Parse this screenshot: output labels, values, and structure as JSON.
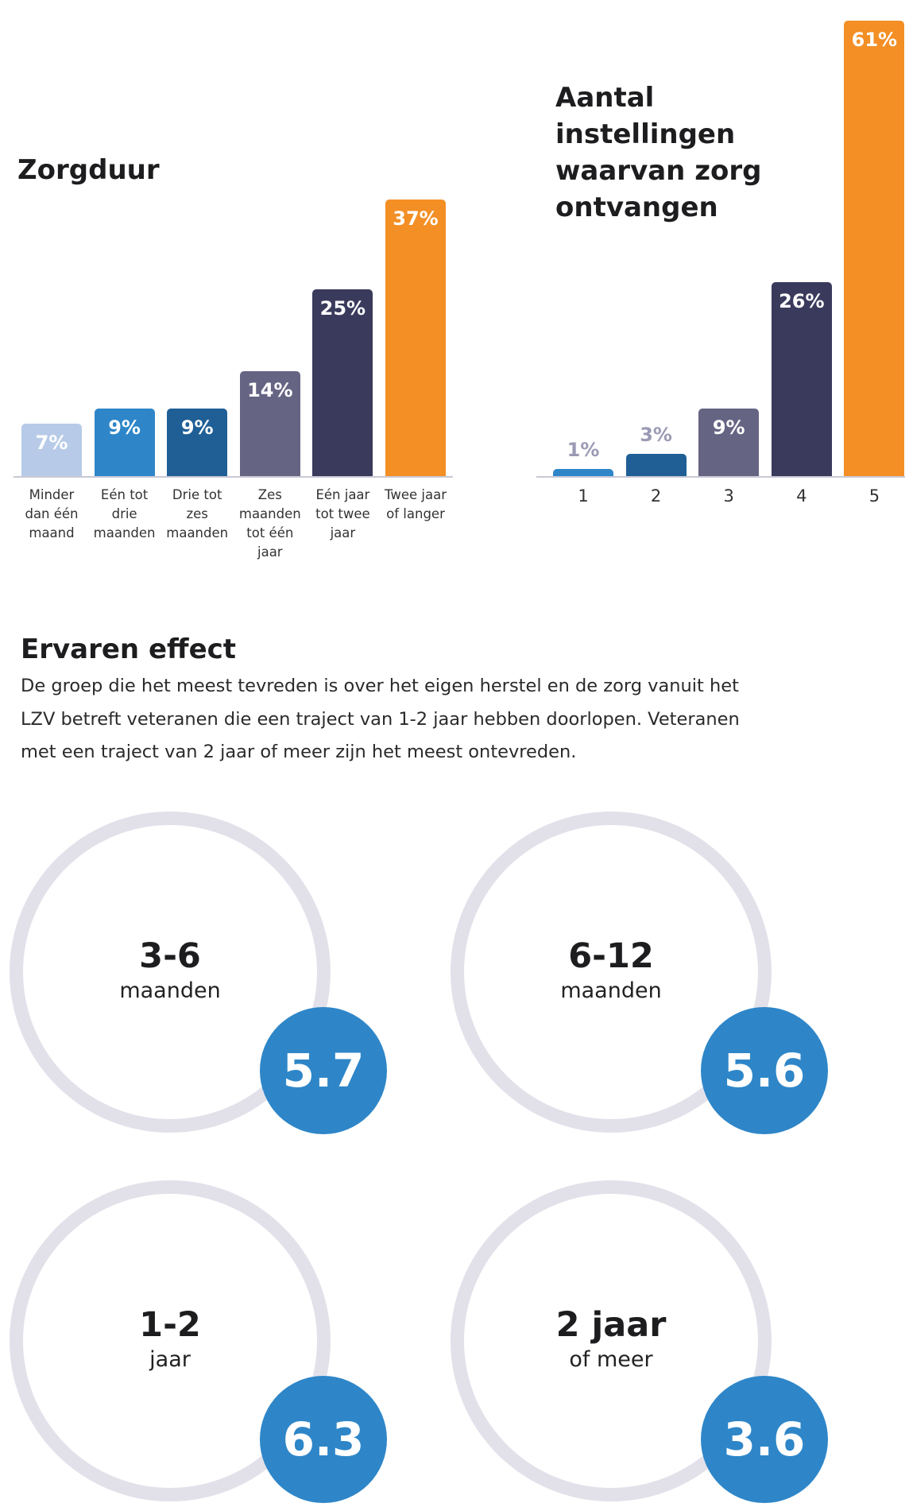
{
  "chart_data": [
    {
      "type": "bar",
      "title": "Zorgduur",
      "categories": [
        "Minder dan één maand",
        "Eén tot drie maanden",
        "Drie tot zes maanden",
        "Zes maanden tot één jaar",
        "Eén jaar tot twee jaar",
        "Twee jaar of langer"
      ],
      "values": [
        7,
        9,
        9,
        14,
        25,
        37
      ],
      "value_labels": [
        "7%",
        "9%",
        "9%",
        "14%",
        "25%",
        "37%"
      ],
      "colors": [
        "#b7cbe8",
        "#2e86c8",
        "#1f5f96",
        "#666483",
        "#393a5c",
        "#f38f25"
      ]
    },
    {
      "type": "bar",
      "title": "Aantal instellingen waarvan zorg ontvangen",
      "categories": [
        "1",
        "2",
        "3",
        "4",
        "5"
      ],
      "values": [
        1,
        3,
        9,
        26,
        61
      ],
      "value_labels": [
        "1%",
        "3%",
        "9%",
        "26%",
        "61%"
      ],
      "colors": [
        "#2e86c8",
        "#1f5f96",
        "#666483",
        "#393a5c",
        "#f38f25"
      ]
    }
  ],
  "section": {
    "title": "Ervaren effect",
    "text": "De groep die het meest tevreden is over het eigen herstel en de zorg vanuit het LZV betreft  veteranen die een traject van 1-2 jaar hebben doorlopen. Veteranen met een traject van 2 jaar of meer zijn het meest ontevreden."
  },
  "scores": [
    {
      "label": "3-6",
      "sublabel": "maanden",
      "value": 5.7
    },
    {
      "label": "6-12",
      "sublabel": "maanden",
      "value": 5.6
    },
    {
      "label": "1-2",
      "sublabel": "jaar",
      "value": 6.3
    },
    {
      "label": "2 jaar",
      "sublabel": "of meer",
      "value": 3.6
    }
  ]
}
